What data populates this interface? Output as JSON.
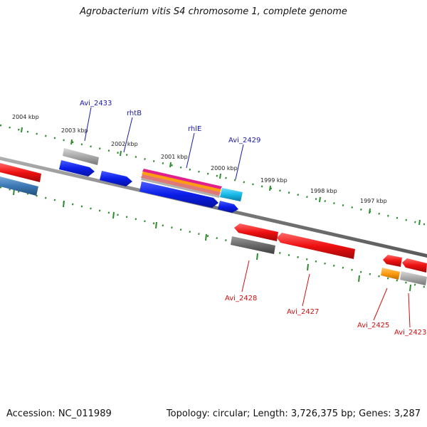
{
  "header": {
    "title": "Agrobacterium vitis S4 chromosome 1, complete genome"
  },
  "footer": {
    "accession": "Accession: NC_011989",
    "topology": "Topology: circular; Length: 3,726,375 bp; Genes: 3,287"
  },
  "colors": {
    "backbone": "#808080",
    "tick": "#2e8b2e",
    "forward_label": "#1a1aa8",
    "reverse_label": "#d01010",
    "gene_blue": "#0a1ee8",
    "gene_red": "#ee1010",
    "gene_grey": "#a8a8a8",
    "gene_darkgrey": "#6a6a6a",
    "gene_steelblue": "#3c78b4",
    "gene_cyan": "#18b8e8",
    "gene_orange": "#ff9c10",
    "gene_magenta": "#e0208c"
  },
  "scale_labels": [
    "2004 kbp",
    "2003 kbp",
    "2002 kbp",
    "2001 kbp",
    "2000 kbp",
    "1999 kbp",
    "1998 kbp",
    "1997 kbp"
  ],
  "forward_gene_labels": [
    "Avi_2433",
    "rhtB",
    "rhlE",
    "Avi_2429"
  ],
  "reverse_gene_labels": [
    "Avi_2428",
    "Avi_2427",
    "Avi_2425",
    "Avi_2423"
  ]
}
